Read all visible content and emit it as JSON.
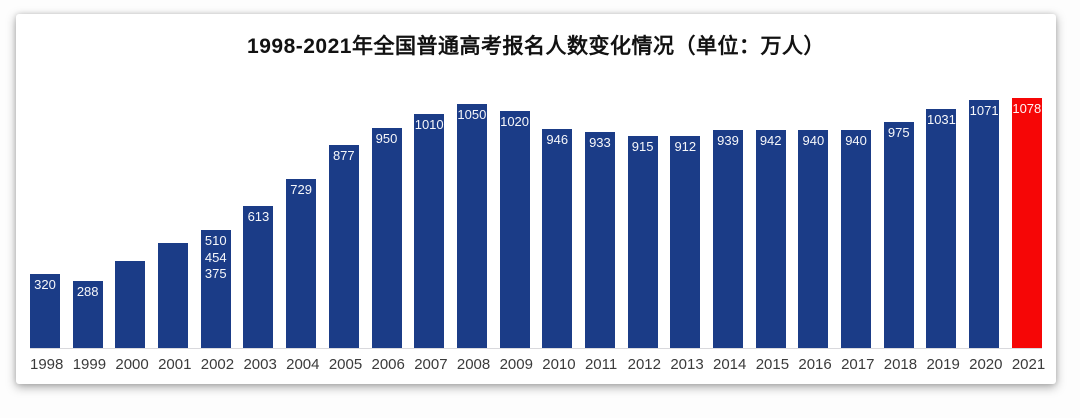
{
  "chart_data": {
    "type": "bar",
    "title": "1998-2021年全国普通高考报名人数变化情况（单位：万人）",
    "unit": "万人",
    "categories": [
      "1998",
      "1999",
      "2000",
      "2001",
      "2002",
      "2003",
      "2004",
      "2005",
      "2006",
      "2007",
      "2008",
      "2009",
      "2010",
      "2011",
      "2012",
      "2013",
      "2014",
      "2015",
      "2016",
      "2017",
      "2018",
      "2019",
      "2020",
      "2021"
    ],
    "values": [
      320,
      288,
      375,
      454,
      510,
      613,
      729,
      877,
      950,
      1010,
      1050,
      1020,
      946,
      933,
      915,
      912,
      939,
      942,
      940,
      940,
      975,
      1031,
      1071,
      1078
    ],
    "bar_labels": [
      "320",
      "288",
      "",
      "",
      "510\n454\n375",
      "613",
      "729",
      "877",
      "950",
      "1010",
      "1050",
      "1020",
      "946",
      "933",
      "915",
      "912",
      "939",
      "942",
      "940",
      "940",
      "975",
      "1031",
      "1071",
      "1078"
    ],
    "highlight_index": 23,
    "colors": {
      "bar": "#1b3c87",
      "highlight": "#f60606",
      "value_label": "#ffffff",
      "year_label": "#3b3b3b",
      "axis_line": "#d9d9dd"
    },
    "ylim": [
      0,
      1078
    ],
    "grid": false,
    "legend": null
  }
}
